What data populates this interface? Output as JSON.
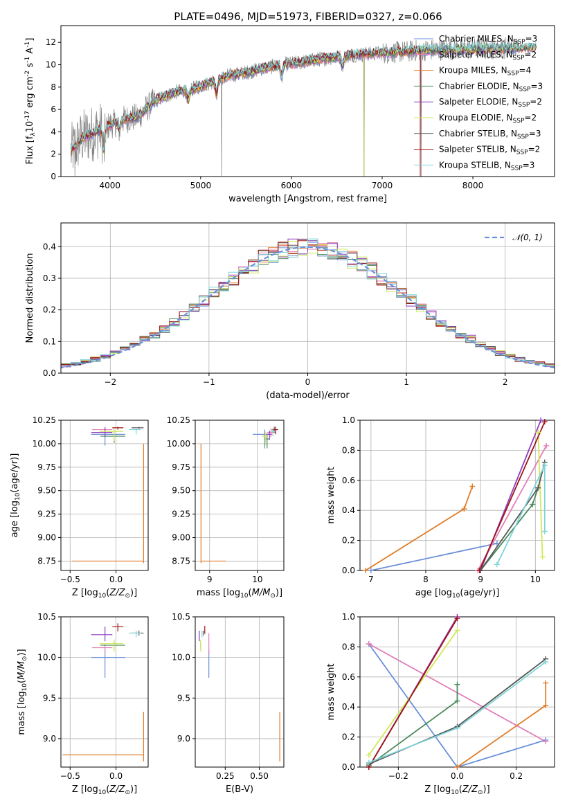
{
  "figure": {
    "title": "PLATE=0496, MJD=51973, FIBERID=0327, z=0.066"
  },
  "models": [
    {
      "name": "Chabrier MILES, N$_{SSP}$=3",
      "label_main": "Chabrier MILES, N",
      "label_sub": "SSP",
      "label_tail": "=3",
      "color": "#6a8fd8"
    },
    {
      "name": "Salpeter MILES, N$_{SSP}$=2",
      "label_main": "Salpeter MILES, N",
      "label_sub": "SSP",
      "label_tail": "=2",
      "color": "#e27fb8"
    },
    {
      "name": "Kroupa MILES, N$_{SSP}$=4",
      "label_main": "Kroupa MILES, N",
      "label_sub": "SSP",
      "label_tail": "=4",
      "color": "#e07b28"
    },
    {
      "name": "Chabrier ELODIE, N$_{SSP}$=3",
      "label_main": "Chabrier ELODIE, N",
      "label_sub": "SSP",
      "label_tail": "=3",
      "color": "#4a8a5a"
    },
    {
      "name": "Salpeter ELODIE, N$_{SSP}$=2",
      "label_main": "Salpeter ELODIE, N",
      "label_sub": "SSP",
      "label_tail": "=2",
      "color": "#8e3fc0"
    },
    {
      "name": "Kroupa ELODIE, N$_{SSP}$=2",
      "label_main": "Kroupa ELODIE, N",
      "label_sub": "SSP",
      "label_tail": "=2",
      "color": "#cfe85a"
    },
    {
      "name": "Chabrier STELIB, N$_{SSP}$=3",
      "label_main": "Chabrier STELIB, N",
      "label_sub": "SSP",
      "label_tail": "=3",
      "color": "#555555"
    },
    {
      "name": "Salpeter STELIB, N$_{SSP}$=2",
      "label_main": "Salpeter STELIB, N",
      "label_sub": "SSP",
      "label_tail": "=2",
      "color": "#a01414"
    },
    {
      "name": "Kroupa STELIB, N$_{SSP}$=3",
      "label_main": "Kroupa STELIB, N",
      "label_sub": "SSP",
      "label_tail": "=3",
      "color": "#7fd4d8"
    }
  ],
  "chart_data": [
    {
      "id": "spectrum",
      "type": "line",
      "xlabel": "wavelength [Angstrom, rest frame]",
      "ylabel": "Flux [f$_\\lambda$10$^{-17}$ erg cm$^{-2}$ s$^{-1}$ A$^{-1}$]",
      "xlim": [
        3460,
        8900
      ],
      "ylim": [
        0,
        13.5
      ],
      "xticks": [
        4000,
        5000,
        6000,
        7000,
        8000
      ],
      "yticks": [
        0,
        2,
        4,
        6,
        8,
        10,
        12
      ],
      "grid": false,
      "legend": "upper right",
      "data_color": "#808080",
      "continuum_points": [
        [
          3570,
          2.2
        ],
        [
          3700,
          3.5
        ],
        [
          3850,
          4.0
        ],
        [
          4000,
          4.6
        ],
        [
          4150,
          5.1
        ],
        [
          4300,
          5.3
        ],
        [
          4500,
          6.8
        ],
        [
          4700,
          7.5
        ],
        [
          4900,
          7.8
        ],
        [
          5100,
          8.4
        ],
        [
          5300,
          9.0
        ],
        [
          5500,
          9.3
        ],
        [
          5700,
          9.7
        ],
        [
          5900,
          10.0
        ],
        [
          6100,
          10.2
        ],
        [
          6300,
          10.5
        ],
        [
          6500,
          10.7
        ],
        [
          6700,
          10.9
        ],
        [
          6900,
          11.0
        ],
        [
          7100,
          11.1
        ],
        [
          7300,
          11.2
        ],
        [
          7420,
          11.3
        ]
      ],
      "absorption_features": [
        [
          3934,
          2.0
        ],
        [
          4102,
          0.8
        ],
        [
          4861,
          0.9
        ],
        [
          5175,
          1.2
        ],
        [
          5893,
          1.0
        ],
        [
          6563,
          0.8
        ]
      ],
      "data_drops_to_zero_at": [
        3615,
        5230,
        6800,
        7430
      ]
    },
    {
      "id": "residuals",
      "type": "histogram",
      "xlabel": "(data-model)/error",
      "ylabel": "Normed distribution",
      "xlim": [
        -2.5,
        2.5
      ],
      "ylim": [
        0,
        0.475
      ],
      "xticks": [
        -2,
        -1,
        0,
        1,
        2
      ],
      "yticks": [
        0.0,
        0.1,
        0.2,
        0.3,
        0.4
      ],
      "grid": true,
      "legend": "upper right",
      "reference_curve": {
        "name": "$\\mathcal{N}(0,1)$",
        "label_text": "𝒩(0, 1)",
        "mean": 0,
        "sigma": 1,
        "color": "#6a8fd8",
        "style": "dashed"
      },
      "bin_width": 0.1,
      "bin_start": -2.6
    },
    {
      "id": "age-vs-Z",
      "type": "errorbar",
      "xlabel": "Z [log$_{10}$($Z/Z_\\odot$)]",
      "ylabel": "age  [log$_{10}$($age/yr$)]",
      "xlim": [
        -0.6,
        0.35
      ],
      "ylim": [
        8.65,
        10.25
      ],
      "xticks": [
        -0.5,
        0.0
      ],
      "yticks": [
        8.75,
        9.0,
        9.25,
        9.5,
        9.75,
        10.0,
        10.25
      ],
      "grid": true,
      "points": [
        {
          "model": 0,
          "x": -0.12,
          "y": 10.1,
          "xerr": [
            0.15,
            0.22
          ],
          "yerr": [
            0.12,
            0.08
          ]
        },
        {
          "model": 1,
          "x": -0.12,
          "y": 10.15,
          "xerr": [
            0.14,
            0.08
          ],
          "yerr": [
            0.08,
            0.03
          ]
        },
        {
          "model": 2,
          "x": 0.3,
          "y": 8.75,
          "xerr": [
            0.78,
            0.0
          ],
          "yerr": [
            0.02,
            1.25
          ]
        },
        {
          "model": 3,
          "x": -0.02,
          "y": 10.08,
          "xerr": [
            0.15,
            0.12
          ],
          "yerr": [
            0.07,
            0.05
          ]
        },
        {
          "model": 4,
          "x": -0.12,
          "y": 10.12,
          "xerr": [
            0.15,
            0.08
          ],
          "yerr": [
            0.05,
            0.05
          ]
        },
        {
          "model": 5,
          "x": -0.02,
          "y": 10.13,
          "xerr": [
            0.16,
            0.1
          ],
          "yerr": [
            0.1,
            0.04
          ]
        },
        {
          "model": 6,
          "x": 0.25,
          "y": 10.17,
          "xerr": [
            0.08,
            0.05
          ],
          "yerr": [
            0.01,
            0.01
          ]
        },
        {
          "model": 7,
          "x": 0.02,
          "y": 10.17,
          "xerr": [
            0.06,
            0.06
          ],
          "yerr": [
            0.02,
            0.01
          ]
        },
        {
          "model": 8,
          "x": 0.22,
          "y": 10.15,
          "xerr": [
            0.08,
            0.05
          ],
          "yerr": [
            0.05,
            0.02
          ]
        }
      ]
    },
    {
      "id": "age-vs-mass",
      "type": "errorbar",
      "xlabel": "mass [log$_{10}$($M/M_\\odot$)]",
      "ylabel": "",
      "xlim": [
        8.7,
        10.55
      ],
      "ylim": [
        8.65,
        10.25
      ],
      "xticks": [
        9,
        10
      ],
      "yticks": [
        8.75,
        9.0,
        9.25,
        9.5,
        9.75,
        10.0,
        10.25
      ],
      "grid": true,
      "points": [
        {
          "model": 0,
          "x": 10.15,
          "y": 10.1,
          "xerr": [
            0.25,
            0.1
          ],
          "yerr": [
            0.15,
            0.05
          ]
        },
        {
          "model": 1,
          "x": 10.28,
          "y": 10.12,
          "xerr": [
            0.08,
            0.1
          ],
          "yerr": [
            0.05,
            0.04
          ]
        },
        {
          "model": 2,
          "x": 8.82,
          "y": 8.75,
          "xerr": [
            0.0,
            0.52
          ],
          "yerr": [
            0.02,
            1.25
          ]
        },
        {
          "model": 3,
          "x": 10.2,
          "y": 10.05,
          "xerr": [
            0.05,
            0.05
          ],
          "yerr": [
            0.1,
            0.05
          ]
        },
        {
          "model": 4,
          "x": 10.25,
          "y": 10.1,
          "xerr": [
            0.08,
            0.05
          ],
          "yerr": [
            0.06,
            0.04
          ]
        },
        {
          "model": 5,
          "x": 10.17,
          "y": 10.08,
          "xerr": [
            0.08,
            0.05
          ],
          "yerr": [
            0.1,
            0.05
          ]
        },
        {
          "model": 6,
          "x": 10.35,
          "y": 10.15,
          "xerr": [
            0.05,
            0.05
          ],
          "yerr": [
            0.03,
            0.03
          ]
        },
        {
          "model": 7,
          "x": 10.38,
          "y": 10.15,
          "xerr": [
            0.08,
            0.05
          ],
          "yerr": [
            0.05,
            0.03
          ]
        },
        {
          "model": 8,
          "x": 10.32,
          "y": 10.13,
          "xerr": [
            0.05,
            0.05
          ],
          "yerr": [
            0.05,
            0.03
          ]
        }
      ]
    },
    {
      "id": "massweight-vs-age",
      "type": "line",
      "xlabel": "age  [log$_{10}$($age/yr$)]",
      "ylabel": "mass weight",
      "xlim": [
        6.8,
        10.35
      ],
      "ylim": [
        0,
        1.0
      ],
      "xticks": [
        7,
        8,
        9,
        10
      ],
      "yticks": [
        0.0,
        0.2,
        0.4,
        0.6,
        0.8,
        1.0
      ],
      "grid": true,
      "series": [
        {
          "model": 0,
          "x": [
            7.0,
            9.3
          ],
          "y": [
            0.0,
            0.18
          ]
        },
        {
          "model": 1,
          "x": [
            8.95,
            10.2
          ],
          "y": [
            0.0,
            0.83
          ]
        },
        {
          "model": 2,
          "x": [
            6.9,
            8.7,
            8.85
          ],
          "y": [
            0.0,
            0.41,
            0.56
          ]
        },
        {
          "model": 3,
          "x": [
            9.0,
            9.95,
            10.05
          ],
          "y": [
            0.0,
            0.44,
            0.55
          ]
        },
        {
          "model": 4,
          "x": [
            9.0,
            10.1
          ],
          "y": [
            0.0,
            1.0
          ]
        },
        {
          "model": 5,
          "x": [
            10.05,
            10.13
          ],
          "y": [
            0.92,
            0.09
          ]
        },
        {
          "model": 6,
          "x": [
            9.0,
            10.05,
            10.17
          ],
          "y": [
            0.0,
            0.55,
            0.72
          ]
        },
        {
          "model": 7,
          "x": [
            8.98,
            10.17
          ],
          "y": [
            0.0,
            0.99
          ]
        },
        {
          "model": 8,
          "x": [
            9.3,
            10.17,
            10.17
          ],
          "y": [
            0.04,
            0.7,
            0.26
          ]
        }
      ]
    },
    {
      "id": "mass-vs-Z",
      "type": "errorbar",
      "xlabel": "Z [log$_{10}$($Z/Z_\\odot$)]",
      "ylabel": "mass [log$_{10}$($M/M_\\odot$)]",
      "xlim": [
        -0.6,
        0.35
      ],
      "ylim": [
        8.65,
        10.5
      ],
      "xticks": [
        -0.5,
        0.0
      ],
      "yticks": [
        9.0,
        9.5,
        10.0,
        10.5
      ],
      "grid": true,
      "points": [
        {
          "model": 0,
          "x": -0.12,
          "y": 10.0,
          "xerr": [
            0.15,
            0.22
          ],
          "yerr": [
            0.25,
            0.1
          ]
        },
        {
          "model": 1,
          "x": -0.12,
          "y": 10.12,
          "xerr": [
            0.14,
            0.08
          ],
          "yerr": [
            0.08,
            0.05
          ]
        },
        {
          "model": 2,
          "x": 0.3,
          "y": 8.8,
          "xerr": [
            0.88,
            0.0
          ],
          "yerr": [
            0.08,
            0.53
          ]
        },
        {
          "model": 3,
          "x": -0.02,
          "y": 10.15,
          "xerr": [
            0.15,
            0.12
          ],
          "yerr": [
            0.05,
            0.05
          ]
        },
        {
          "model": 4,
          "x": -0.12,
          "y": 10.28,
          "xerr": [
            0.15,
            0.08
          ],
          "yerr": [
            0.08,
            0.1
          ]
        },
        {
          "model": 5,
          "x": -0.02,
          "y": 10.17,
          "xerr": [
            0.16,
            0.1
          ],
          "yerr": [
            0.1,
            0.05
          ]
        },
        {
          "model": 6,
          "x": 0.25,
          "y": 10.3,
          "xerr": [
            0.08,
            0.05
          ],
          "yerr": [
            0.03,
            0.03
          ]
        },
        {
          "model": 7,
          "x": 0.02,
          "y": 10.38,
          "xerr": [
            0.06,
            0.06
          ],
          "yerr": [
            0.06,
            0.04
          ]
        },
        {
          "model": 8,
          "x": 0.22,
          "y": 10.3,
          "xerr": [
            0.08,
            0.05
          ],
          "yerr": [
            0.05,
            0.03
          ]
        }
      ]
    },
    {
      "id": "mass-vs-EBV",
      "type": "errorbar",
      "xlabel": "E(B-V)",
      "ylabel": "",
      "xlim": [
        0.03,
        0.68
      ],
      "ylim": [
        8.65,
        10.5
      ],
      "xticks": [
        0.25,
        0.5
      ],
      "yticks": [
        9.0,
        9.5,
        10.0,
        10.5
      ],
      "grid": true,
      "points": [
        {
          "model": 0,
          "x": 0.13,
          "y": 10.0,
          "xerr": [
            0,
            0
          ],
          "yerr": [
            0.25,
            0.1
          ]
        },
        {
          "model": 1,
          "x": 0.13,
          "y": 10.12,
          "xerr": [
            0,
            0
          ],
          "yerr": [
            0.08,
            0.18
          ]
        },
        {
          "model": 2,
          "x": 0.65,
          "y": 8.8,
          "xerr": [
            0,
            0
          ],
          "yerr": [
            0.08,
            0.53
          ]
        },
        {
          "model": 3,
          "x": 0.07,
          "y": 10.15,
          "xerr": [
            0,
            0
          ],
          "yerr": [
            0.05,
            0.05
          ]
        },
        {
          "model": 4,
          "x": 0.06,
          "y": 10.28,
          "xerr": [
            0,
            0
          ],
          "yerr": [
            0.08,
            0.05
          ]
        },
        {
          "model": 5,
          "x": 0.07,
          "y": 10.17,
          "xerr": [
            0,
            0
          ],
          "yerr": [
            0.1,
            0.05
          ]
        },
        {
          "model": 6,
          "x": 0.09,
          "y": 10.3,
          "xerr": [
            0,
            0
          ],
          "yerr": [
            0.03,
            0.03
          ]
        },
        {
          "model": 7,
          "x": 0.1,
          "y": 10.35,
          "xerr": [
            0,
            0
          ],
          "yerr": [
            0.06,
            0.04
          ]
        },
        {
          "model": 8,
          "x": 0.08,
          "y": 10.3,
          "xerr": [
            0,
            0
          ],
          "yerr": [
            0.05,
            0.03
          ]
        }
      ]
    },
    {
      "id": "massweight-vs-Z",
      "type": "line",
      "xlabel": "Z [log$_{10}$($Z/Z_\\odot$)]",
      "ylabel": "mass weight",
      "xlim": [
        -0.33,
        0.33
      ],
      "ylim": [
        0,
        1.0
      ],
      "xticks": [
        -0.2,
        0.0,
        0.2
      ],
      "yticks": [
        0.0,
        0.2,
        0.4,
        0.6,
        0.8,
        1.0
      ],
      "grid": true,
      "series": [
        {
          "model": 0,
          "x": [
            -0.3,
            0.0,
            0.3
          ],
          "y": [
            0.82,
            0.0,
            0.18
          ]
        },
        {
          "model": 1,
          "x": [
            -0.3,
            0.3
          ],
          "y": [
            0.82,
            0.17
          ]
        },
        {
          "model": 2,
          "x": [
            0.0,
            0.3,
            0.3
          ],
          "y": [
            0.0,
            0.41,
            0.56
          ]
        },
        {
          "model": 3,
          "x": [
            -0.3,
            0.0,
            0.0
          ],
          "y": [
            0.01,
            0.44,
            0.55
          ]
        },
        {
          "model": 4,
          "x": [
            -0.3,
            0.0
          ],
          "y": [
            0.0,
            1.0
          ]
        },
        {
          "model": 5,
          "x": [
            -0.3,
            0.0
          ],
          "y": [
            0.08,
            0.91
          ]
        },
        {
          "model": 6,
          "x": [
            -0.3,
            0.0,
            0.3
          ],
          "y": [
            0.02,
            0.27,
            0.72
          ]
        },
        {
          "model": 7,
          "x": [
            -0.3,
            0.0
          ],
          "y": [
            0.0,
            0.99
          ]
        },
        {
          "model": 8,
          "x": [
            -0.3,
            0.0,
            0.3
          ],
          "y": [
            0.03,
            0.26,
            0.7
          ]
        }
      ]
    }
  ]
}
